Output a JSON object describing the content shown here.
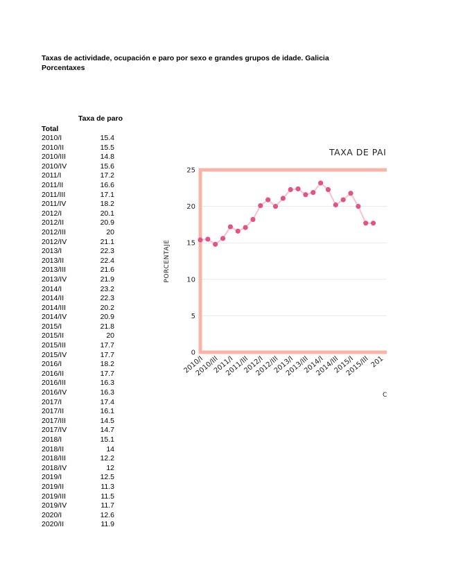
{
  "page": {
    "title_line1": "Taxas de actividade, ocupación e paro por sexo e grandes grupos de idade. Galicia",
    "title_line2": "Porcentaxes"
  },
  "table": {
    "header": "Taxa de paro",
    "group": "Total",
    "rows": [
      {
        "label": "2010/I",
        "value": "15.4"
      },
      {
        "label": "2010/II",
        "value": "15.5"
      },
      {
        "label": "2010/III",
        "value": "14.8"
      },
      {
        "label": "2010/IV",
        "value": "15.6"
      },
      {
        "label": "2011/I",
        "value": "17.2"
      },
      {
        "label": "2011/II",
        "value": "16.6"
      },
      {
        "label": "2011/III",
        "value": "17.1"
      },
      {
        "label": "2011/IV",
        "value": "18.2"
      },
      {
        "label": "2012/I",
        "value": "20.1"
      },
      {
        "label": "2012/II",
        "value": "20.9"
      },
      {
        "label": "2012/III",
        "value": "20"
      },
      {
        "label": "2012/IV",
        "value": "21.1"
      },
      {
        "label": "2013/I",
        "value": "22.3"
      },
      {
        "label": "2013/II",
        "value": "22.4"
      },
      {
        "label": "2013/III",
        "value": "21.6"
      },
      {
        "label": "2013/IV",
        "value": "21.9"
      },
      {
        "label": "2014/I",
        "value": "23.2"
      },
      {
        "label": "2014/II",
        "value": "22.3"
      },
      {
        "label": "2014/III",
        "value": "20.2"
      },
      {
        "label": "2014/IV",
        "value": "20.9"
      },
      {
        "label": "2015/I",
        "value": "21.8"
      },
      {
        "label": "2015/II",
        "value": "20"
      },
      {
        "label": "2015/III",
        "value": "17.7"
      },
      {
        "label": "2015/IV",
        "value": "17.7"
      },
      {
        "label": "2016/I",
        "value": "18.2"
      },
      {
        "label": "2016/II",
        "value": "17.7"
      },
      {
        "label": "2016/III",
        "value": "16.3"
      },
      {
        "label": "2016/IV",
        "value": "16.3"
      },
      {
        "label": "2017/I",
        "value": "17.4"
      },
      {
        "label": "2017/II",
        "value": "16.1"
      },
      {
        "label": "2017/III",
        "value": "14.5"
      },
      {
        "label": "2017/IV",
        "value": "14.7"
      },
      {
        "label": "2018/I",
        "value": "15.1"
      },
      {
        "label": "2018/II",
        "value": "14"
      },
      {
        "label": "2018/III",
        "value": "12.2"
      },
      {
        "label": "2018/IV",
        "value": "12"
      },
      {
        "label": "2019/I",
        "value": "12.5"
      },
      {
        "label": "2019/II",
        "value": "11.3"
      },
      {
        "label": "2019/III",
        "value": "11.5"
      },
      {
        "label": "2019/IV",
        "value": "11.7"
      },
      {
        "label": "2020/I",
        "value": "12.6"
      },
      {
        "label": "2020/II",
        "value": "11.9"
      }
    ]
  },
  "chart_data": {
    "type": "line",
    "title": "TAXA DE PAI",
    "ylabel": "PORCENTAJE",
    "xlabel": "C",
    "ylim": [
      0,
      25
    ],
    "yticks": [
      0,
      5,
      10,
      15,
      20,
      25
    ],
    "grid": true,
    "x": [
      "2010/I",
      "2010/II",
      "2010/III",
      "2010/IV",
      "2011/I",
      "2011/II",
      "2011/III",
      "2011/IV",
      "2012/I",
      "2012/II",
      "2012/III",
      "2012/IV",
      "2013/I",
      "2013/II",
      "2013/III",
      "2013/IV",
      "2014/I",
      "2014/II",
      "2014/III",
      "2014/IV",
      "2015/I",
      "2015/II",
      "2015/III",
      "2015/IV"
    ],
    "xtick_labels": [
      "2010/I",
      "2010/III",
      "2011/I",
      "2011/III",
      "2012/I",
      "2012/III",
      "2013/I",
      "2013/III",
      "2014/I",
      "2014/III",
      "2015/I",
      "2015/III",
      "201"
    ],
    "series": [
      {
        "values": [
          15.4,
          15.5,
          14.8,
          15.6,
          17.2,
          16.6,
          17.1,
          18.2,
          20.1,
          20.9,
          20,
          21.1,
          22.3,
          22.4,
          21.6,
          21.9,
          23.2,
          22.3,
          20.2,
          20.9,
          21.8,
          20,
          17.7,
          17.7
        ]
      }
    ],
    "colors": {
      "frame": "#f8b4a6",
      "line": "#f6c6cf",
      "marker": "#e05586",
      "grid": "#e8e8e8"
    }
  }
}
